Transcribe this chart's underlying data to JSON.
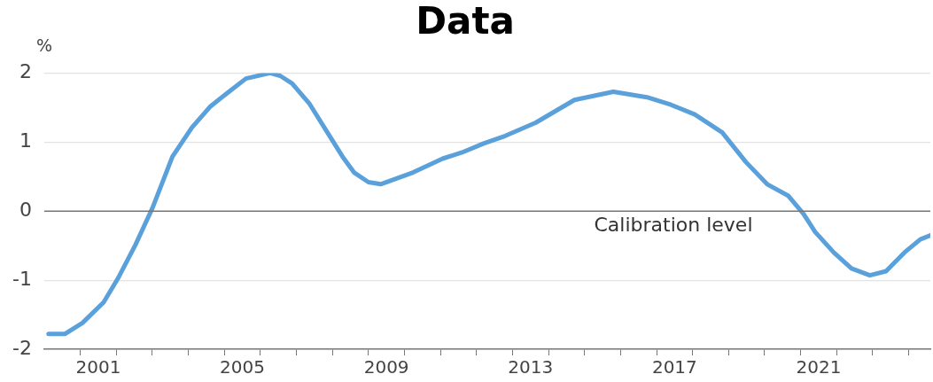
{
  "chart_data": {
    "type": "line",
    "title": "Data",
    "ylabel": "%",
    "xlim": [
      2000,
      2024.6
    ],
    "ylim": [
      -2,
      2
    ],
    "yticks": [
      -2,
      -1,
      0,
      1,
      2
    ],
    "xticks": [
      {
        "value": 2001,
        "label": null
      },
      {
        "value": 2001.5,
        "label": "2001"
      },
      {
        "value": 2002,
        "label": null
      },
      {
        "value": 2003,
        "label": null
      },
      {
        "value": 2004,
        "label": null
      },
      {
        "value": 2005,
        "label": null
      },
      {
        "value": 2005.5,
        "label": "2005"
      },
      {
        "value": 2006,
        "label": null
      },
      {
        "value": 2007,
        "label": null
      },
      {
        "value": 2008,
        "label": null
      },
      {
        "value": 2009,
        "label": null
      },
      {
        "value": 2009.5,
        "label": "2009"
      },
      {
        "value": 2010,
        "label": null
      },
      {
        "value": 2011,
        "label": null
      },
      {
        "value": 2012,
        "label": null
      },
      {
        "value": 2013,
        "label": null
      },
      {
        "value": 2013.5,
        "label": "2013"
      },
      {
        "value": 2014,
        "label": null
      },
      {
        "value": 2015,
        "label": null
      },
      {
        "value": 2016,
        "label": null
      },
      {
        "value": 2017,
        "label": null
      },
      {
        "value": 2017.5,
        "label": "2017"
      },
      {
        "value": 2018,
        "label": null
      },
      {
        "value": 2019,
        "label": null
      },
      {
        "value": 2020,
        "label": null
      },
      {
        "value": 2021,
        "label": null
      },
      {
        "value": 2021.5,
        "label": "2021"
      },
      {
        "value": 2022,
        "label": null
      },
      {
        "value": 2023,
        "label": null
      },
      {
        "value": 2024,
        "label": null
      }
    ],
    "grid": "y",
    "marker": "none",
    "line_style": "solid",
    "ref_lines": [
      {
        "axis": "y",
        "value": 0,
        "label": "Calibration level",
        "color": "#777777"
      }
    ],
    "series": [
      {
        "color": "#5aa0da",
        "x": [
          2000.12,
          2000.57,
          2001.06,
          2001.65,
          2002.04,
          2002.53,
          2003.0,
          2003.56,
          2004.1,
          2004.6,
          2005.08,
          2005.6,
          2006.27,
          2006.55,
          2006.88,
          2007.37,
          2007.86,
          2008.28,
          2008.6,
          2009.0,
          2009.34,
          2010.24,
          2011.06,
          2011.6,
          2012.2,
          2012.8,
          2013.64,
          2014.72,
          2015.8,
          2016.73,
          2017.4,
          2018.06,
          2018.82,
          2019.48,
          2020.07,
          2020.66,
          2021.08,
          2021.4,
          2021.92,
          2022.41,
          2022.92,
          2023.37,
          2023.88,
          2024.32,
          2024.6
        ],
        "values": [
          -1.78,
          -1.78,
          -1.62,
          -1.32,
          -0.98,
          -0.49,
          0.04,
          0.79,
          1.21,
          1.51,
          1.71,
          1.92,
          2.0,
          1.96,
          1.85,
          1.55,
          1.14,
          0.79,
          0.56,
          0.42,
          0.39,
          0.56,
          0.76,
          0.85,
          0.98,
          1.09,
          1.28,
          1.61,
          1.73,
          1.65,
          1.54,
          1.4,
          1.14,
          0.71,
          0.39,
          0.22,
          -0.04,
          -0.3,
          -0.6,
          -0.83,
          -0.93,
          -0.87,
          -0.6,
          -0.41,
          -0.35
        ]
      }
    ]
  }
}
